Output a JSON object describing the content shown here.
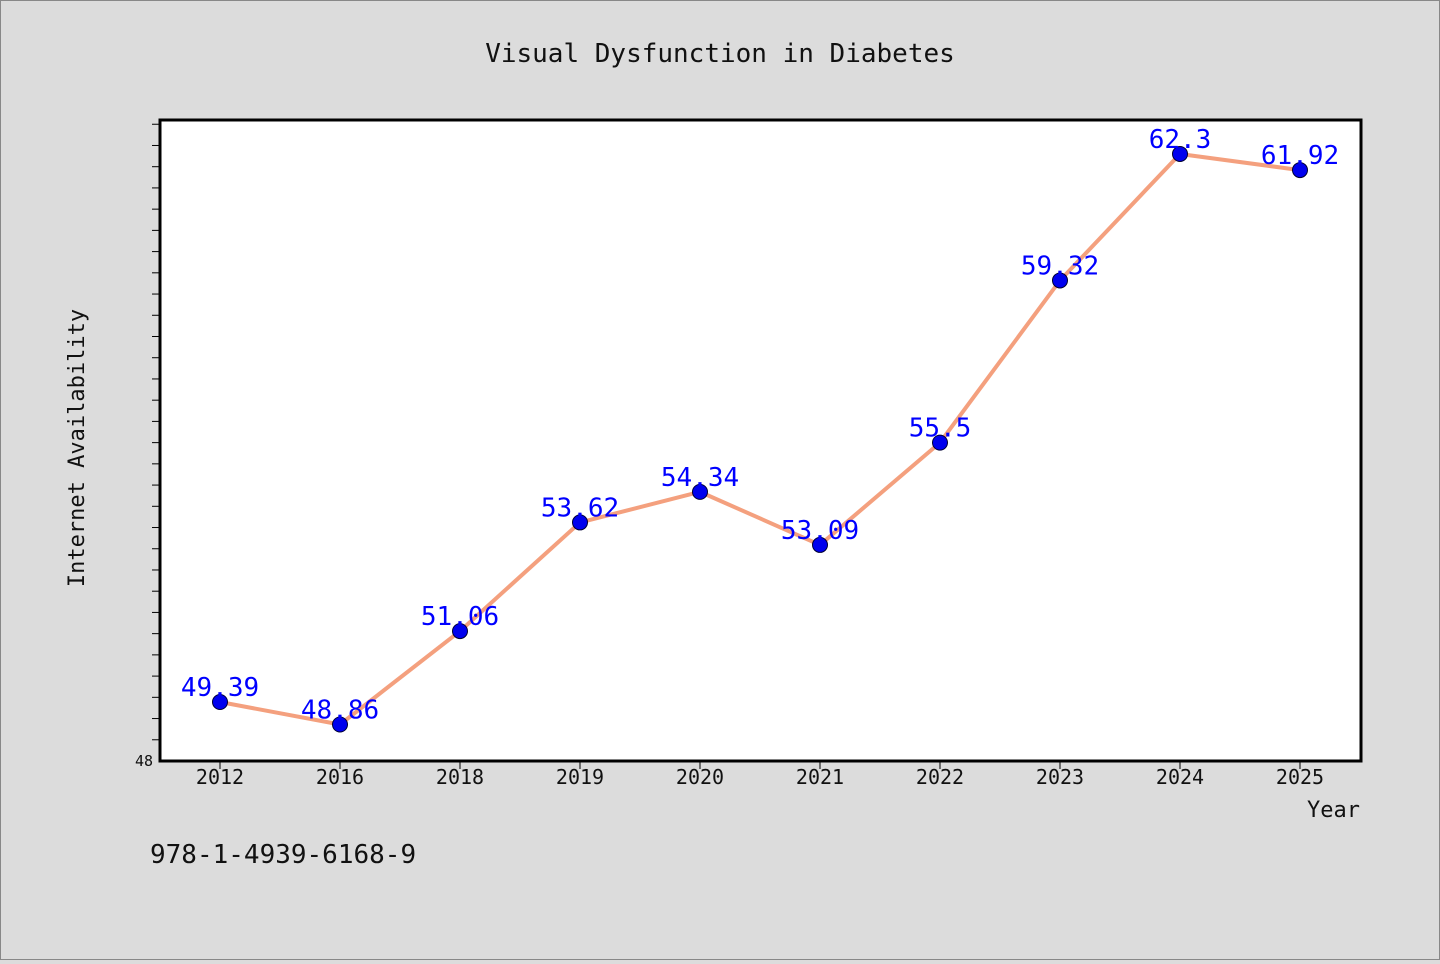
{
  "chart_data": {
    "type": "line",
    "title": "Visual Dysfunction in Diabetes",
    "xlabel": "Year",
    "ylabel": "Internet Availability",
    "categories": [
      "2012",
      "2016",
      "2018",
      "2019",
      "2020",
      "2021",
      "2022",
      "2023",
      "2024",
      "2025"
    ],
    "series": [
      {
        "values": [
          49.39,
          48.86,
          51.06,
          53.62,
          54.34,
          53.09,
          55.5,
          59.32,
          62.3,
          61.92
        ],
        "line_color": "#f4a07e",
        "marker_color": "#0000ee",
        "label_color": "#0000ff"
      }
    ],
    "ylim": [
      48,
      63.1
    ],
    "y_tick_labels": [
      "48"
    ],
    "grid": false,
    "legend": "none"
  },
  "footnote": "978-1-4939-6168-9",
  "colors": {
    "background": "#dcdcdc",
    "plot_background": "#ffffff",
    "frame": "#000000"
  }
}
